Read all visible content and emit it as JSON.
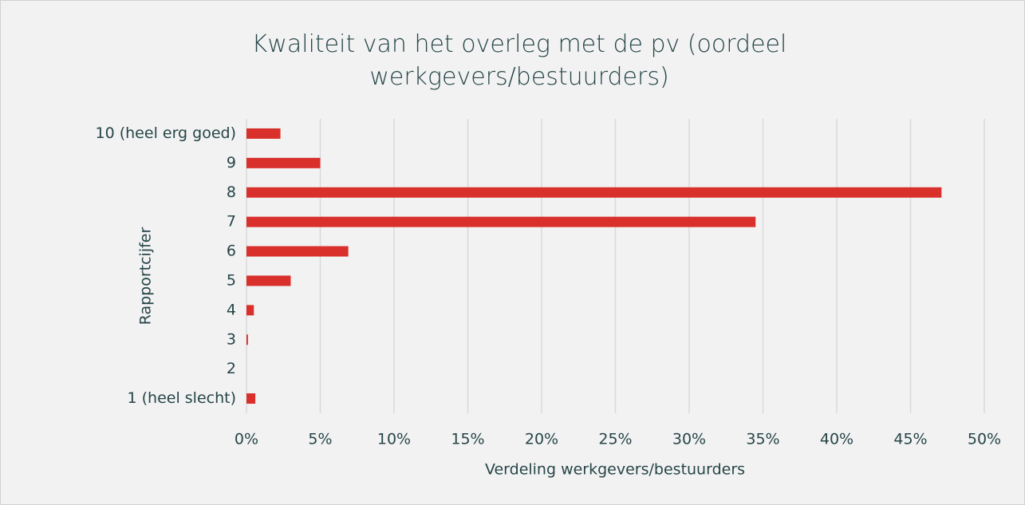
{
  "chart_data": {
    "type": "hbar",
    "title": "Kwaliteit van het overleg met de pv (oordeel werkgevers/bestuurders)",
    "x_label": "Verdeling werkgevers/bestuurders",
    "y_label": "Rapportcijfer",
    "categories": [
      "10 (heel erg goed)",
      "9",
      "8",
      "7",
      "6",
      "5",
      "4",
      "3",
      "2",
      "1 (heel slecht)"
    ],
    "values": [
      2.3,
      5.0,
      47.1,
      34.5,
      6.9,
      3.0,
      0.5,
      0.1,
      0,
      0.6
    ],
    "color": "#d9302c",
    "xlim": [
      0,
      50
    ],
    "xticks": [
      {
        "value": 0,
        "label": "0%"
      },
      {
        "value": 5,
        "label": "5%"
      },
      {
        "value": 10,
        "label": "10%"
      },
      {
        "value": 15,
        "label": "15%"
      },
      {
        "value": 20,
        "label": "20%"
      },
      {
        "value": 25,
        "label": "25%"
      },
      {
        "value": 30,
        "label": "30%"
      },
      {
        "value": 35,
        "label": "35%"
      },
      {
        "value": 40,
        "label": "40%"
      },
      {
        "value": 45,
        "label": "45%"
      },
      {
        "value": 50,
        "label": "50%"
      }
    ],
    "grid": true
  }
}
